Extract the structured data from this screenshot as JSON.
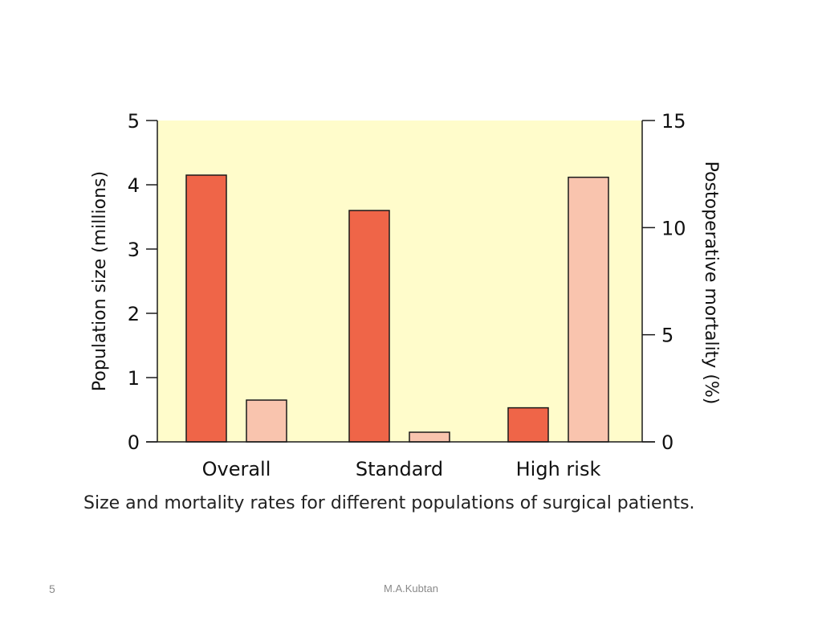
{
  "chart_data": {
    "type": "bar",
    "categories": [
      "Overall",
      "Standard",
      "High risk"
    ],
    "series": [
      {
        "axis": "left",
        "color": "#EF6548",
        "values": [
          4.15,
          3.6,
          0.53
        ]
      },
      {
        "axis": "right",
        "color": "#F9C4AE",
        "values": [
          1.95,
          0.45,
          12.35
        ]
      }
    ],
    "y_left": {
      "label": "Population size (millions)",
      "ylim": [
        0,
        5
      ],
      "ticks": [
        "0",
        "1",
        "2",
        "3",
        "4",
        "5"
      ]
    },
    "y_right": {
      "label": "Postoperative mortality (%)",
      "ylim": [
        0,
        15
      ],
      "ticks": [
        "0",
        "5",
        "10",
        "15"
      ]
    },
    "plot_background": "#FFFCCB",
    "grid": false,
    "legend": "none"
  },
  "caption": "Size and mortality rates for different populations of surgical patients.",
  "footer": {
    "slide_number": "5",
    "author": "M.A.Kubtan"
  }
}
